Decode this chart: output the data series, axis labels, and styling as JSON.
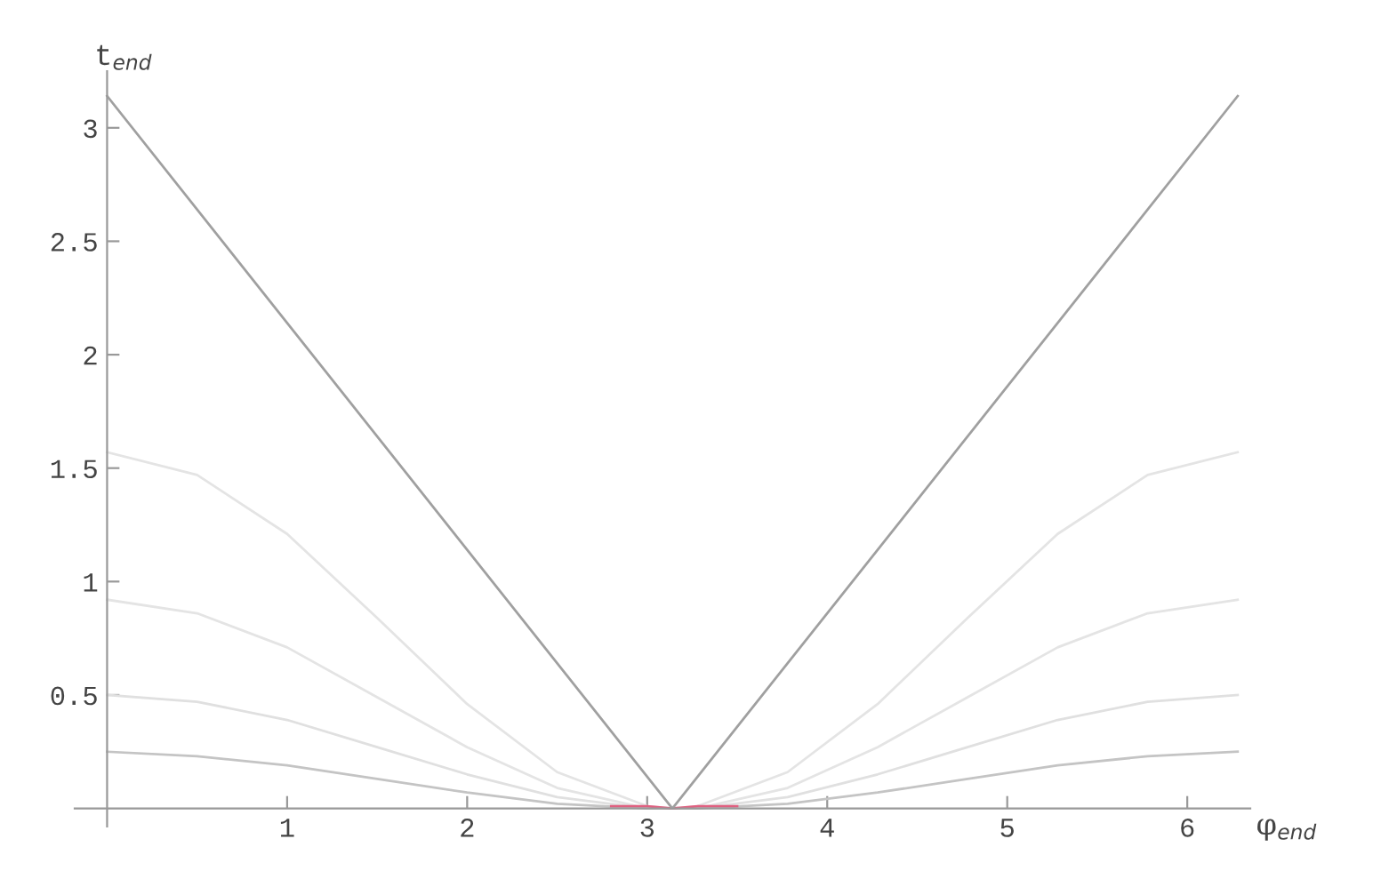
{
  "chart_data": {
    "type": "line",
    "xlabel": "φ$_{end}$",
    "ylabel": "t$_{end}$",
    "x": [
      0,
      0.5,
      1,
      1.5,
      2,
      2.5,
      3,
      3.14,
      3.28,
      3.78,
      4.28,
      4.78,
      5.28,
      5.78,
      6.28
    ],
    "series": [
      {
        "color": "#e4e4e4",
        "values": [
          1.57,
          1.47,
          1.21,
          0.84,
          0.46,
          0.16,
          0.01,
          0,
          0.01,
          0.16,
          0.46,
          0.84,
          1.21,
          1.47,
          1.57
        ]
      },
      {
        "color": "#e4e4e4",
        "values": [
          0.92,
          0.86,
          0.71,
          0.49,
          0.27,
          0.09,
          0,
          0,
          0,
          0.09,
          0.27,
          0.49,
          0.71,
          0.86,
          0.92
        ]
      },
      {
        "color": "#e0e0e0",
        "values": [
          0.5,
          0.47,
          0.39,
          0.27,
          0.15,
          0.05,
          0,
          0,
          0,
          0.05,
          0.15,
          0.27,
          0.39,
          0.47,
          0.5
        ]
      },
      {
        "color": "#c4c4c4",
        "values": [
          0.25,
          0.23,
          0.19,
          0.13,
          0.07,
          0.02,
          0,
          0,
          0,
          0.02,
          0.07,
          0.13,
          0.19,
          0.23,
          0.25
        ]
      },
      {
        "color": "#e06080",
        "x": [
          2.8,
          3.0,
          3.14,
          3.28,
          3.5
        ],
        "values": [
          0.01,
          0.01,
          0,
          0.01,
          0.01
        ]
      },
      {
        "color": "#a0a0a0",
        "x": [
          0,
          3.14,
          6.28
        ],
        "values": [
          3.14,
          0,
          3.14
        ]
      }
    ],
    "xlim": [
      -0.18,
      6.35
    ],
    "ylim": [
      -0.08,
      3.25
    ],
    "xticks": [
      1,
      2,
      3,
      4,
      5,
      6
    ],
    "yticks": [
      0.5,
      1,
      1.5,
      2,
      2.5,
      3
    ],
    "grid": false,
    "marker": "none",
    "line_style": "solid"
  }
}
